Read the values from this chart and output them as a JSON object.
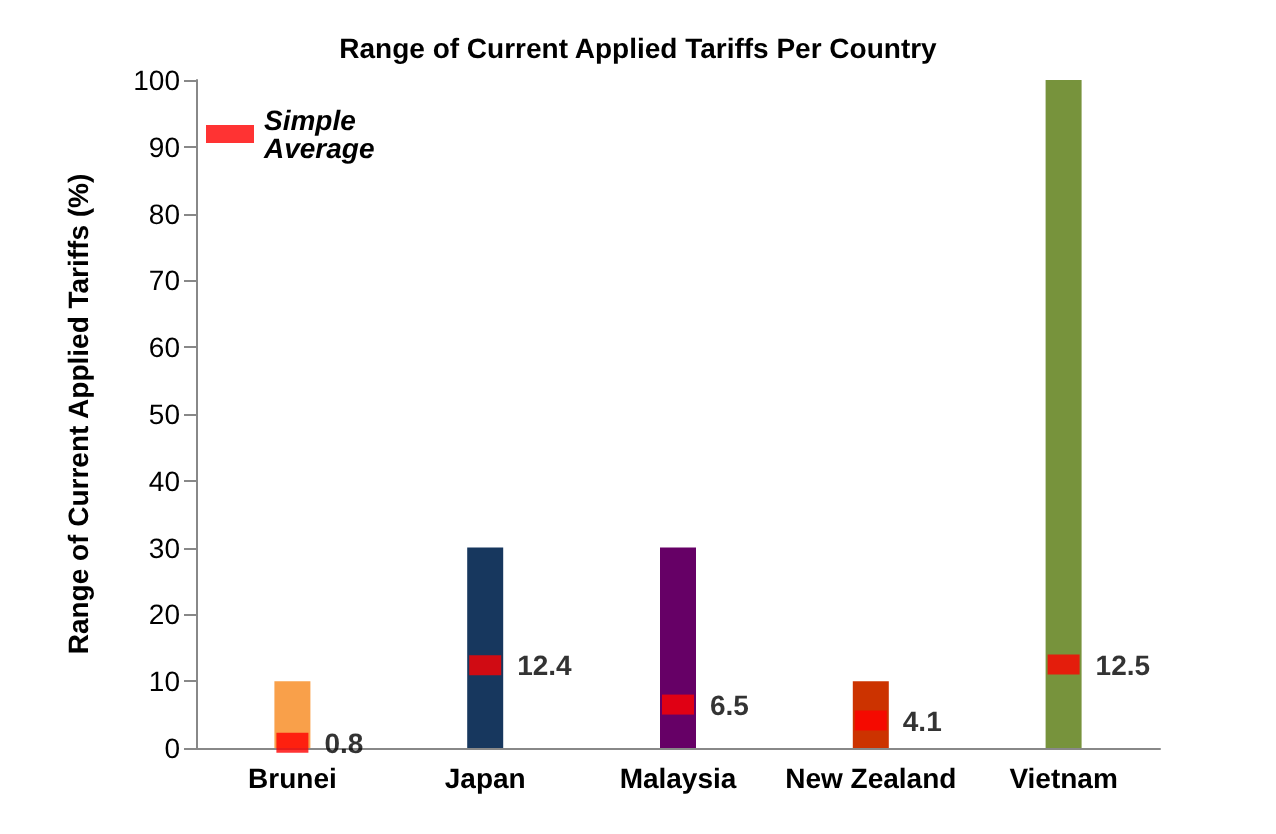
{
  "chart_data": {
    "type": "bar",
    "title": "Range of Current Applied Tariffs Per Country",
    "ylabel": "Range of Current Applied Tariffs (%)",
    "categories": [
      "Brunei",
      "Japan",
      "Malaysia",
      "New Zealand",
      "Vietnam"
    ],
    "series": [
      {
        "colors": [
          "#f9a04a",
          "#17375e",
          "#660066",
          "#cc3300",
          "#77933c"
        ],
        "values": [
          10,
          30,
          30,
          10,
          100
        ]
      },
      {
        "type": "scatter",
        "name": "Simple Average",
        "color": "#ff0000",
        "x": [
          "Brunei",
          "Japan",
          "Malaysia",
          "New Zealand",
          "Vietnam"
        ],
        "values": [
          0.8,
          12.4,
          6.5,
          4.1,
          12.5
        ],
        "value_labels": [
          "0.8",
          "12.4",
          "6.5",
          "4.1",
          "12.5"
        ],
        "marker": "square"
      }
    ],
    "ylim": [
      0,
      100
    ],
    "yticks": [
      0,
      10,
      20,
      30,
      40,
      50,
      60,
      70,
      80,
      90,
      100
    ],
    "grid": false,
    "legend": "top left"
  }
}
